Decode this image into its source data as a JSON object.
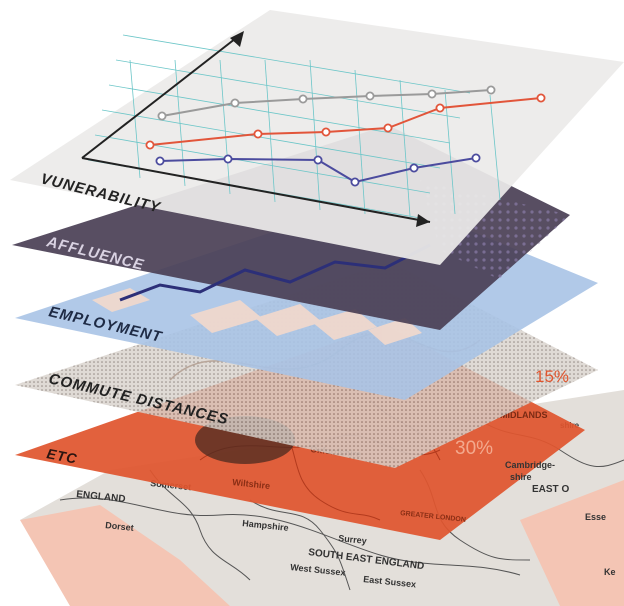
{
  "layers": [
    {
      "name": "VUNERABILITY"
    },
    {
      "name": "AFFLUENCE"
    },
    {
      "name": "EMPLOYMENT"
    },
    {
      "name": "COMMUTE DISTANCES"
    },
    {
      "name": "ETC"
    }
  ],
  "percent_labels": [
    "15%",
    "30%"
  ],
  "map_labels": {
    "england": "ENGLAND",
    "somerset": "Somerset",
    "dorset": "Dorset",
    "hampshire": "Hampshire",
    "wiltshire": "Wiltshire",
    "oxfordshire": "Oxfordshire",
    "surrey": "Surrey",
    "south_east": "SOUTH EAST ENGLAND",
    "west_sussex": "West Sussex",
    "east_sussex": "East Sussex",
    "midlands": "MIDLANDS",
    "cambridge": "Cambridge-",
    "shire": "shire",
    "east": "EAST O",
    "essex": "Esse",
    "kent": "Ke",
    "greater_london": "GREATER LONDON"
  },
  "colors": {
    "top_layer": "#ecebe9",
    "affluence": "#4a3f55",
    "employment": "#a9c3e6",
    "commute": "#d8d2cc",
    "etc": "#e0552e",
    "map": "#e3dfda",
    "series_gray": "#9a9a9a",
    "series_orange": "#e2553a",
    "series_blue": "#4b4b9e",
    "grid": "#6cc6c8"
  }
}
